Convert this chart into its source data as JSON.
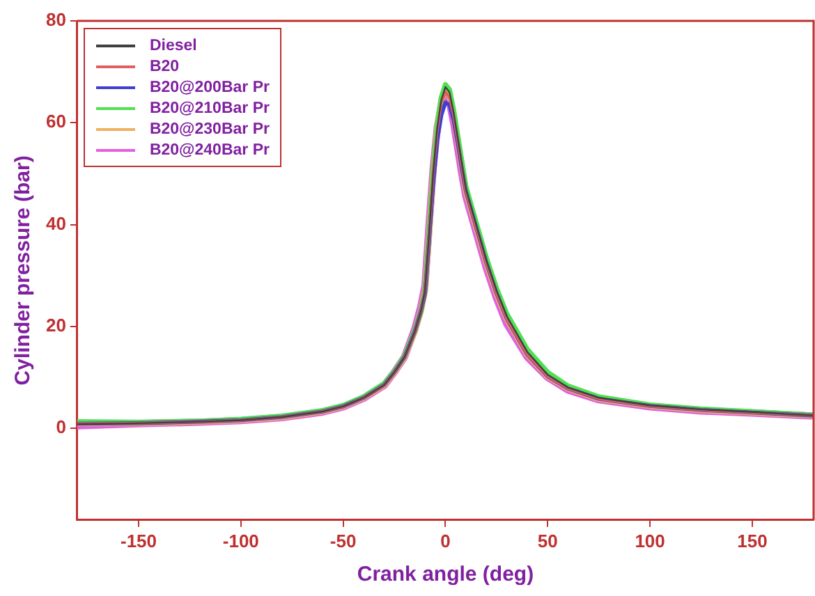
{
  "chart_data": {
    "type": "line",
    "xlabel": "Crank angle (deg)",
    "ylabel": "Cylinder pressure (bar)",
    "x": [
      -180,
      -150,
      -120,
      -100,
      -80,
      -60,
      -50,
      -40,
      -30,
      -25,
      -20,
      -15,
      -12,
      -10,
      -8,
      -6,
      -4,
      -2,
      0,
      2,
      4,
      6,
      8,
      10,
      15,
      20,
      25,
      30,
      40,
      50,
      60,
      75,
      100,
      125,
      150,
      180
    ],
    "series": [
      {
        "name": "Diesel",
        "color": "#404040",
        "values": [
          0.8,
          1.0,
          1.3,
          1.6,
          2.2,
          3.3,
          4.3,
          6,
          8.5,
          11,
          14,
          19,
          23,
          27,
          38,
          50,
          59,
          64.5,
          67,
          66,
          62,
          57,
          52,
          47,
          40,
          33,
          27,
          22,
          15,
          10.5,
          8,
          6,
          4.5,
          3.7,
          3.2,
          2.5
        ]
      },
      {
        "name": "B20",
        "color": "#e06060",
        "values": [
          0.9,
          1.0,
          1.3,
          1.6,
          2.2,
          3.3,
          4.3,
          6,
          8.5,
          11,
          14,
          19,
          23,
          27,
          38,
          50,
          58.5,
          64,
          66,
          65,
          61.5,
          56.5,
          51.5,
          46.5,
          39.5,
          32.5,
          26.5,
          21.5,
          14.5,
          10.2,
          7.8,
          5.8,
          4.4,
          3.6,
          3.1,
          2.5
        ]
      },
      {
        "name": "B20@200Bar Pr",
        "color": "#4040d0",
        "values": [
          0.9,
          1.0,
          1.3,
          1.6,
          2.2,
          3.3,
          4.3,
          6,
          8.5,
          11,
          14,
          19,
          23,
          26.5,
          37,
          48,
          56.5,
          61.5,
          64,
          63.5,
          60.5,
          56,
          51,
          46.5,
          39.5,
          32.5,
          26.5,
          21.5,
          14.5,
          10.2,
          7.8,
          5.8,
          4.4,
          3.6,
          3.1,
          2.5
        ]
      },
      {
        "name": "B20@210Bar Pr",
        "color": "#50e050",
        "values": [
          1.3,
          1.2,
          1.4,
          1.8,
          2.4,
          3.5,
          4.5,
          6.2,
          8.8,
          11.2,
          14.2,
          19.2,
          23,
          27,
          38.5,
          50.5,
          59.5,
          65,
          67.5,
          66.5,
          62.5,
          57.5,
          52.5,
          47.5,
          40.5,
          33.5,
          27.5,
          22.5,
          15.5,
          11,
          8.3,
          6.2,
          4.6,
          3.8,
          3.3,
          2.6
        ]
      },
      {
        "name": "B20@230Bar Pr",
        "color": "#f0b060",
        "values": [
          1.0,
          1.0,
          1.3,
          1.6,
          2.2,
          3.3,
          4.3,
          6,
          8.5,
          11,
          14,
          19,
          23,
          27,
          38,
          50,
          59,
          64.5,
          66.5,
          65.5,
          61.5,
          56.5,
          51.5,
          46.5,
          39.5,
          32.5,
          26.5,
          21.5,
          14.5,
          10.2,
          7.8,
          5.8,
          4.4,
          3.6,
          3.1,
          2.5
        ]
      },
      {
        "name": "B20@240Bar Pr",
        "color": "#e060e0",
        "values": [
          0.5,
          0.9,
          1.2,
          1.5,
          2.1,
          3.2,
          4.2,
          5.9,
          8.4,
          11,
          14,
          19.5,
          24,
          28,
          40,
          51,
          59,
          63.5,
          65,
          64,
          60,
          55,
          50,
          45.5,
          38.5,
          31.5,
          25.5,
          20.5,
          14,
          10,
          7.5,
          5.6,
          4.2,
          3.4,
          3,
          2.4
        ]
      }
    ],
    "xlim": [
      -180,
      180
    ],
    "xticks": [
      -150,
      -100,
      -50,
      0,
      50,
      100,
      150
    ],
    "ylim": [
      -18,
      80
    ],
    "yticks": [
      0,
      20,
      40,
      60,
      80
    ],
    "grid": false,
    "legend": "top left",
    "marker": "none",
    "line_style": "solid"
  }
}
